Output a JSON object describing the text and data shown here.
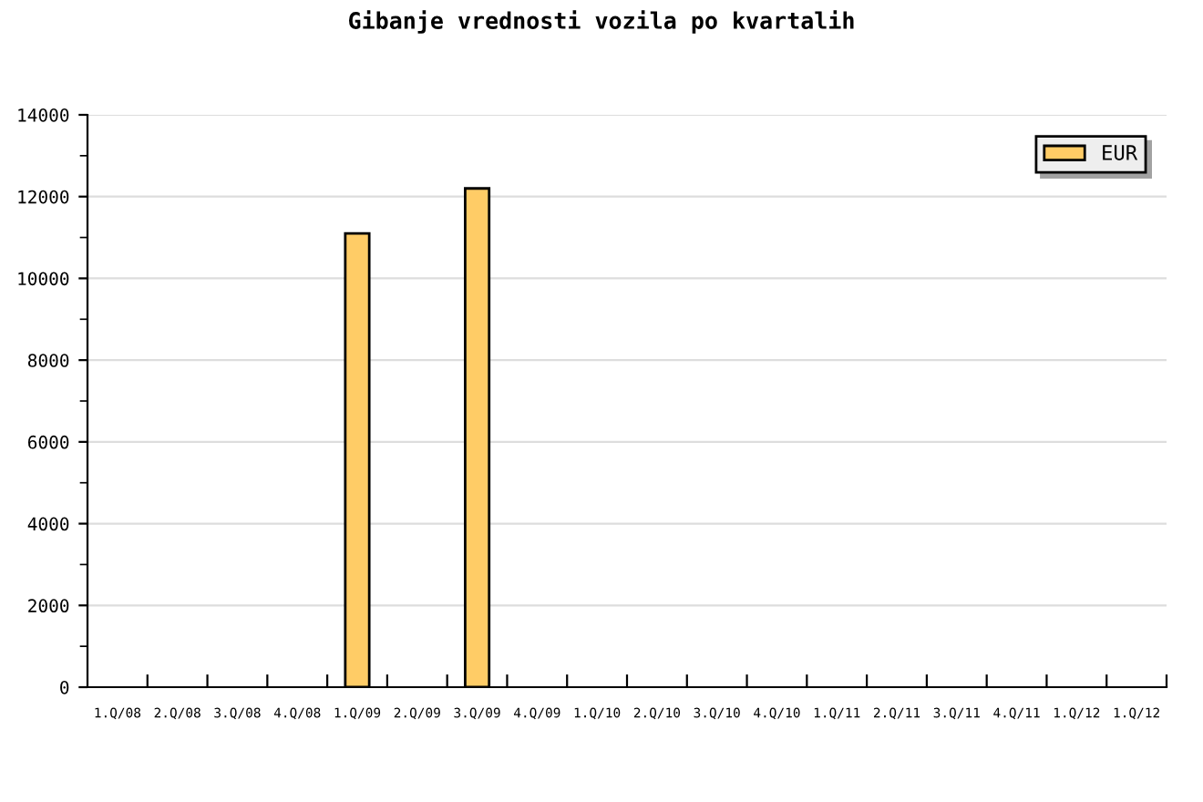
{
  "chart_data": {
    "type": "bar",
    "title": "Gibanje vrednosti vozila po kvartalih",
    "categories": [
      "1.Q/08",
      "2.Q/08",
      "3.Q/08",
      "4.Q/08",
      "1.Q/09",
      "2.Q/09",
      "3.Q/09",
      "4.Q/09",
      "1.Q/10",
      "2.Q/10",
      "3.Q/10",
      "4.Q/10",
      "1.Q/11",
      "2.Q/11",
      "3.Q/11",
      "4.Q/11",
      "1.Q/12",
      "1.Q/12"
    ],
    "series": [
      {
        "name": "EUR",
        "color": "#ffcc66",
        "values": [
          null,
          null,
          null,
          null,
          11100,
          null,
          12200,
          null,
          null,
          null,
          null,
          null,
          null,
          null,
          null,
          null,
          null,
          null
        ]
      }
    ],
    "ylim": [
      0,
      14000
    ],
    "yticks": [
      0,
      2000,
      4000,
      6000,
      8000,
      10000,
      12000,
      14000
    ],
    "grid": "y",
    "legend": "top right"
  }
}
